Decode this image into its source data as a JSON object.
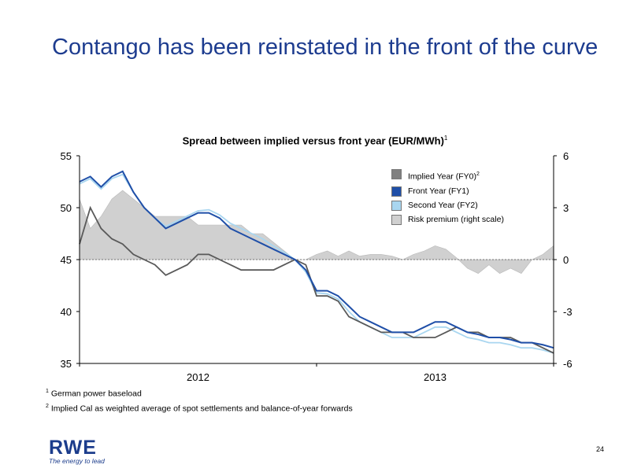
{
  "slide": {
    "title": "Contango has been reinstated in the front of the curve",
    "page_number": "24"
  },
  "logo": {
    "word": "RWE",
    "tagline": "The energy to lead"
  },
  "footnotes": [
    {
      "marker": "1",
      "text": "German power baseload"
    },
    {
      "marker": "2",
      "text": "Implied Cal as weighted average of spot settlements and balance-of-year forwards"
    }
  ],
  "colors": {
    "fy0": "#595959",
    "fy1": "#1f4fa8",
    "fy2": "#a9d6f0",
    "risk": "#d0d0d0",
    "title": "#1d3c8f"
  },
  "chart_data": {
    "type": "line",
    "title": "Spread between implied versus front year (EUR/MWh)",
    "title_marker": "1",
    "x_tick_labels": [
      "2012",
      "2013"
    ],
    "y_left": {
      "ylim": [
        35,
        55
      ],
      "ticks": [
        35,
        40,
        45,
        50,
        55
      ]
    },
    "y_right": {
      "ylim": [
        -6,
        6
      ],
      "ticks": [
        -6,
        -3,
        0,
        3,
        6
      ]
    },
    "legend_placement": "top-right",
    "legend": [
      {
        "label": "Implied Year (FY0)",
        "marker": "2",
        "color": "#808080"
      },
      {
        "label": "Front Year (FY1)",
        "color": "#1f4fa8"
      },
      {
        "label": "Second Year (FY2)",
        "color": "#a9d6f0"
      },
      {
        "label": "Risk premium (right scale)",
        "color": "#d0d0d0"
      }
    ],
    "x_months": [
      0,
      0.5,
      1,
      1.5,
      2,
      2.5,
      3,
      3.5,
      4,
      4.5,
      5,
      5.5,
      6,
      6.5,
      7,
      7.5,
      8,
      8.5,
      9,
      9.5,
      10,
      10.5,
      11,
      11.5,
      12,
      12.5,
      13,
      13.5,
      14,
      14.5,
      15,
      15.5,
      16,
      16.5,
      17,
      17.5,
      18,
      18.5,
      19,
      19.5,
      20,
      20.5,
      21,
      21.5,
      22
    ],
    "series": [
      {
        "name": "Implied Year (FY0)",
        "axis": "left",
        "color": "#595959",
        "values": [
          46.5,
          50.0,
          48.0,
          47.0,
          46.5,
          45.5,
          45.0,
          44.5,
          43.5,
          44.0,
          44.5,
          45.5,
          45.5,
          45.0,
          44.5,
          44.0,
          44.0,
          44.0,
          44.0,
          44.5,
          45.0,
          44.5,
          41.5,
          41.5,
          41.0,
          39.5,
          39.0,
          38.5,
          38.0,
          38.0,
          38.0,
          37.5,
          37.5,
          37.5,
          38.0,
          38.5,
          38.0,
          38.0,
          37.5,
          37.5,
          37.5,
          37.0,
          37.0,
          36.5,
          36.0
        ]
      },
      {
        "name": "Front Year (FY1)",
        "axis": "left",
        "color": "#1f4fa8",
        "values": [
          52.5,
          53.0,
          52.0,
          53.0,
          53.5,
          51.5,
          50.0,
          49.0,
          48.0,
          48.5,
          49.0,
          49.5,
          49.5,
          49.0,
          48.0,
          47.5,
          47.0,
          46.5,
          46.0,
          45.5,
          45.0,
          44.0,
          42.0,
          42.0,
          41.5,
          40.5,
          39.5,
          39.0,
          38.5,
          38.0,
          38.0,
          38.0,
          38.5,
          39.0,
          39.0,
          38.5,
          38.0,
          37.8,
          37.5,
          37.5,
          37.3,
          37.0,
          37.0,
          36.8,
          36.5
        ]
      },
      {
        "name": "Second Year (FY2)",
        "axis": "left",
        "color": "#a9d6f0",
        "values": [
          52.3,
          52.8,
          51.8,
          52.8,
          53.2,
          51.5,
          50.0,
          49.0,
          48.2,
          48.7,
          49.2,
          49.7,
          49.8,
          49.3,
          48.5,
          48.0,
          47.5,
          47.0,
          46.3,
          45.7,
          45.0,
          43.8,
          41.8,
          41.7,
          41.2,
          40.0,
          39.0,
          38.5,
          38.0,
          37.5,
          37.5,
          37.5,
          38.0,
          38.5,
          38.5,
          38.0,
          37.5,
          37.3,
          37.0,
          37.0,
          36.8,
          36.5,
          36.5,
          36.3,
          36.0
        ]
      },
      {
        "name": "Risk premium (right scale)",
        "axis": "right",
        "color": "#d0d0d0",
        "values": [
          3.5,
          1.8,
          2.5,
          3.5,
          4.0,
          3.5,
          3.0,
          2.5,
          2.5,
          2.5,
          2.5,
          2.0,
          2.0,
          2.0,
          2.0,
          2.0,
          1.5,
          1.5,
          1.0,
          0.5,
          0.0,
          0.0,
          0.3,
          0.5,
          0.2,
          0.5,
          0.2,
          0.3,
          0.3,
          0.2,
          0.0,
          0.3,
          0.5,
          0.8,
          0.6,
          0.1,
          -0.5,
          -0.8,
          -0.3,
          -0.8,
          -0.5,
          -0.8,
          0.0,
          0.3,
          0.8
        ]
      }
    ]
  }
}
